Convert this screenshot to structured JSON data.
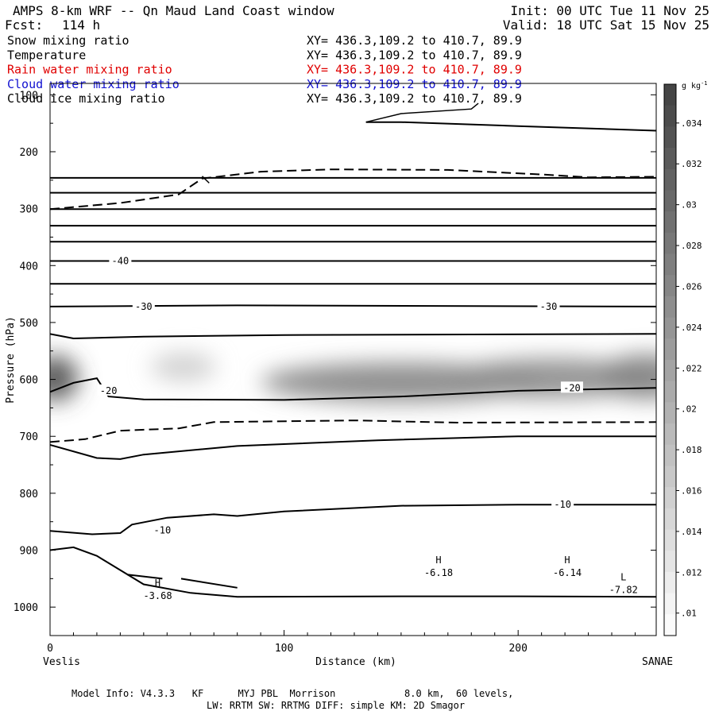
{
  "header": {
    "title": "AMPS 8-km WRF -- Qn Maud Land Coast window",
    "init": "Init: 00 UTC Tue 11 Nov 25",
    "fcst_label": "Fcst:",
    "fcst_value": "114 h",
    "valid": "Valid: 18 UTC Sat 15 Nov 25"
  },
  "fields": [
    {
      "name": "Snow mixing ratio",
      "xy": "XY= 436.3,109.2 to 410.7, 89.9",
      "color": "#000000"
    },
    {
      "name": "Temperature",
      "xy": "XY= 436.3,109.2 to 410.7, 89.9",
      "color": "#000000"
    },
    {
      "name": "Rain water mixing ratio",
      "xy": "XY= 436.3,109.2 to 410.7, 89.9",
      "color": "#e00000"
    },
    {
      "name": "Cloud water mixing ratio",
      "xy": "XY= 436.3,109.2 to 410.7, 89.9",
      "color": "#1010d0"
    },
    {
      "name": "Cloud ice mixing ratio",
      "xy": "XY= 436.3,109.2 to 410.7, 89.9",
      "color": "#000000"
    }
  ],
  "footer": {
    "line1": "Model Info: V4.3.3   KF      MYJ PBL  Morrison            8.0 km,  60 levels,",
    "line2": "LW: RRTM SW: RRTMG   DIFF: simple KM: 2D Smagor"
  },
  "chart_data": {
    "type": "cross-section",
    "xlabel": "Distance (km)",
    "ylabel": "Pressure (hPa)",
    "xlim": [
      0,
      259
    ],
    "ylim": [
      1050,
      80
    ],
    "x_ticks": [
      0,
      100,
      200
    ],
    "y_ticks": [
      100,
      200,
      300,
      400,
      500,
      600,
      700,
      800,
      900,
      1000
    ],
    "left_endpoint": "Veslis",
    "right_endpoint": "SANAE",
    "colorbar": {
      "unit": "g kg",
      "unit_exp": "-1",
      "ticks": [
        ".034",
        ".032",
        ".03",
        ".028",
        ".026",
        ".024",
        ".022",
        ".02",
        ".018",
        ".016",
        ".014",
        ".012",
        ".01"
      ],
      "min": 0.009,
      "max": 0.0355
    },
    "contour_labels": [
      {
        "text": "-40",
        "x": 30,
        "p": 392
      },
      {
        "text": "-30",
        "x": 40,
        "p": 472
      },
      {
        "text": "-30",
        "x": 213,
        "p": 472
      },
      {
        "text": "-20",
        "x": 25,
        "p": 620
      },
      {
        "text": "-20",
        "x": 223,
        "p": 615
      },
      {
        "text": "-10",
        "x": 48,
        "p": 865
      },
      {
        "text": "-10",
        "x": 219,
        "p": 820
      }
    ],
    "extrema": [
      {
        "type": "H",
        "value": "-6.18",
        "x": 166,
        "p": 940
      },
      {
        "type": "H",
        "value": "-6.14",
        "x": 221,
        "p": 940
      },
      {
        "type": "H",
        "value": "-3.68",
        "x": 46,
        "p": 980
      },
      {
        "type": "L",
        "value": "-7.82",
        "x": 245,
        "p": 970
      }
    ],
    "isotherms_solid": [
      [
        [
          135,
          148
        ],
        [
          150,
          148
        ],
        [
          200,
          155
        ],
        [
          259,
          163
        ]
      ],
      [
        [
          0,
          246
        ],
        [
          259,
          246
        ]
      ],
      [
        [
          0,
          272
        ],
        [
          259,
          272
        ]
      ],
      [
        [
          0,
          301
        ],
        [
          259,
          301
        ]
      ],
      [
        [
          0,
          330
        ],
        [
          259,
          330
        ]
      ],
      [
        [
          0,
          358
        ],
        [
          259,
          358
        ]
      ],
      [
        [
          0,
          392
        ],
        [
          259,
          392
        ]
      ],
      [
        [
          0,
          432
        ],
        [
          259,
          432
        ]
      ],
      [
        [
          0,
          472
        ],
        [
          80,
          470
        ],
        [
          259,
          472
        ]
      ],
      [
        [
          0,
          520
        ],
        [
          10,
          528
        ],
        [
          40,
          525
        ],
        [
          100,
          522
        ],
        [
          259,
          520
        ]
      ],
      [
        [
          0,
          622
        ],
        [
          10,
          606
        ],
        [
          20,
          598
        ],
        [
          25,
          630
        ],
        [
          40,
          635
        ],
        [
          100,
          636
        ],
        [
          150,
          630
        ],
        [
          200,
          620
        ],
        [
          259,
          615
        ]
      ],
      [
        [
          0,
          715
        ],
        [
          20,
          738
        ],
        [
          30,
          740
        ],
        [
          40,
          732
        ],
        [
          80,
          717
        ],
        [
          140,
          707
        ],
        [
          200,
          700
        ],
        [
          259,
          700
        ]
      ],
      [
        [
          0,
          866
        ],
        [
          18,
          872
        ],
        [
          30,
          870
        ],
        [
          35,
          855
        ],
        [
          50,
          843
        ],
        [
          70,
          837
        ],
        [
          80,
          840
        ],
        [
          100,
          832
        ],
        [
          150,
          822
        ],
        [
          200,
          820
        ],
        [
          259,
          820
        ]
      ],
      [
        [
          0,
          900
        ],
        [
          10,
          895
        ],
        [
          20,
          910
        ],
        [
          30,
          935
        ],
        [
          40,
          960
        ],
        [
          60,
          975
        ],
        [
          80,
          982
        ],
        [
          150,
          981
        ],
        [
          200,
          981
        ],
        [
          259,
          982
        ]
      ],
      [
        [
          33,
          943
        ],
        [
          48,
          950
        ]
      ],
      [
        [
          56,
          950
        ],
        [
          80,
          966
        ]
      ]
    ],
    "isotherms_dashed": [
      [
        [
          0,
          301
        ],
        [
          30,
          290
        ],
        [
          55,
          275
        ],
        [
          65,
          247
        ],
        [
          90,
          235
        ],
        [
          120,
          231
        ],
        [
          170,
          232
        ],
        [
          210,
          240
        ],
        [
          230,
          245
        ],
        [
          259,
          244
        ]
      ],
      [
        [
          0,
          710
        ],
        [
          15,
          705
        ],
        [
          30,
          690
        ],
        [
          55,
          686
        ],
        [
          70,
          675
        ],
        [
          130,
          672
        ],
        [
          175,
          676
        ],
        [
          259,
          675
        ]
      ]
    ],
    "freezing_marks": [
      [
        [
          135,
          148
        ],
        [
          150,
          133
        ],
        [
          180,
          125
        ],
        [
          183,
          115
        ]
      ],
      [
        [
          65,
          243
        ],
        [
          68,
          255
        ]
      ]
    ],
    "snow_blobs": [
      {
        "x": 2,
        "p": 598,
        "rx": 10,
        "rp": 40,
        "v": 0.034
      },
      {
        "x": 57,
        "p": 578,
        "rx": 14,
        "rp": 25,
        "v": 0.016
      },
      {
        "x": 150,
        "p": 605,
        "rx": 60,
        "rp": 35,
        "v": 0.026
      },
      {
        "x": 215,
        "p": 598,
        "rx": 45,
        "rp": 35,
        "v": 0.025
      },
      {
        "x": 255,
        "p": 595,
        "rx": 20,
        "rp": 40,
        "v": 0.026
      }
    ]
  }
}
